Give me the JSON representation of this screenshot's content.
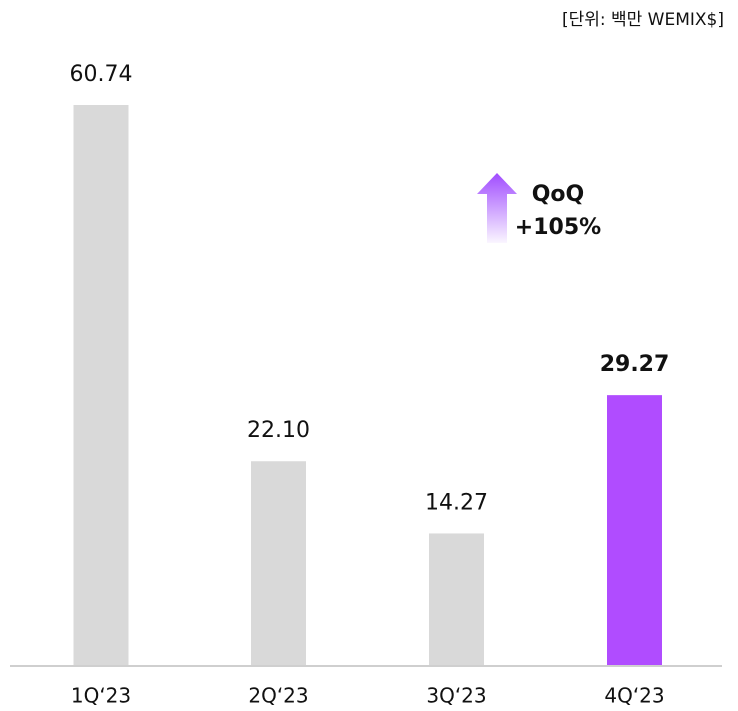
{
  "chart_data": {
    "type": "bar",
    "unit_label": "[단위: 백만 WEMIX$]",
    "categories": [
      "1Q‘23",
      "2Q‘23",
      "3Q‘23",
      "4Q‘23"
    ],
    "values": [
      60.74,
      22.1,
      14.27,
      29.27
    ],
    "value_labels": [
      "60.74",
      "22.10",
      "14.27",
      "29.27"
    ],
    "colors": [
      "#d9d9d9",
      "#d9d9d9",
      "#d9d9d9",
      "#b04cff"
    ],
    "annotation": [
      "QoQ",
      "+105%"
    ]
  }
}
